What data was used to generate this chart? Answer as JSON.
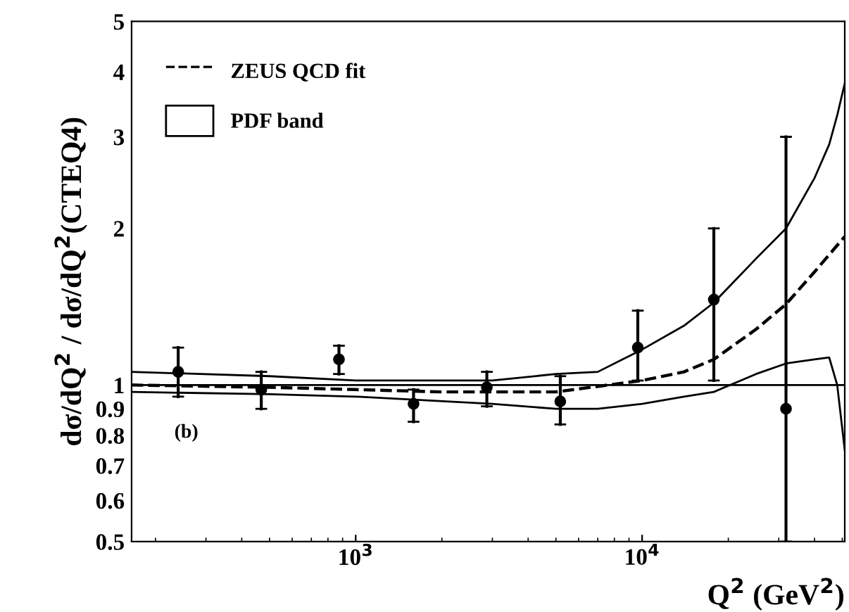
{
  "chart_data": {
    "type": "scatter",
    "xlabel": "Q$^{2}$ (GeV$^{2}$)",
    "ylabel": "dσ/dQ$^{2}$ / dσ/dQ$^{2}$(CTEQ4)",
    "annotations": [
      "(b)"
    ],
    "log": "xy",
    "xlim": [
      165,
      51000
    ],
    "ylim": [
      0.5,
      5
    ],
    "xticks": [
      {
        "value": 1000,
        "label": "10$^{3}$"
      },
      {
        "value": 10000,
        "label": "10$^{4}$"
      }
    ],
    "yticks": [
      0.5,
      0.6,
      0.7,
      0.8,
      0.9,
      1,
      2,
      3,
      4,
      5
    ],
    "grid": false,
    "legend": "top left",
    "ref_lines": [
      {
        "axis": "y",
        "value": 1,
        "color": "#000000",
        "line_style": "solid"
      }
    ],
    "series": [
      {
        "color": "#000000",
        "marker": "circle",
        "x": [
          240,
          468,
          874,
          1592,
          2870,
          5180,
          9660,
          17800,
          31800
        ],
        "values": [
          1.06,
          0.98,
          1.12,
          0.92,
          0.99,
          0.93,
          1.18,
          1.46,
          0.9
        ],
        "errors": [
          [
            0.95,
            1.18
          ],
          [
            0.9,
            1.06
          ],
          [
            1.05,
            1.19
          ],
          [
            0.85,
            0.98
          ],
          [
            0.91,
            1.06
          ],
          [
            0.84,
            1.04
          ],
          [
            1.02,
            1.39
          ],
          [
            1.02,
            2.0
          ],
          [
            0.5,
            3.0
          ]
        ]
      },
      {
        "type": "line",
        "name": "ZEUS QCD fit",
        "color": "#000000",
        "line_style": "dashed",
        "marker": "none",
        "x": [
          165,
          500,
          1000,
          2000,
          5000,
          10000,
          14000,
          17800,
          25000,
          31800,
          40000,
          51000
        ],
        "values": [
          1.0,
          0.99,
          0.98,
          0.97,
          0.97,
          1.02,
          1.06,
          1.12,
          1.28,
          1.43,
          1.65,
          1.93
        ]
      },
      {
        "type": "line",
        "color": "#000000",
        "line_style": "solid",
        "marker": "none",
        "x": [
          165,
          500,
          1000,
          3000,
          5000,
          7000,
          10000,
          14000,
          17800,
          25000,
          31800,
          40000,
          45000,
          48000,
          51000
        ],
        "values": [
          0.97,
          0.96,
          0.95,
          0.92,
          0.9,
          0.9,
          0.92,
          0.95,
          0.97,
          1.05,
          1.1,
          1.12,
          1.13,
          1.0,
          0.75
        ]
      },
      {
        "type": "line",
        "name": "PDF band",
        "color": "#000000",
        "line_style": "solid",
        "marker": "none",
        "x": [
          165,
          500,
          1000,
          3000,
          5000,
          7000,
          10000,
          14000,
          17800,
          25000,
          31800,
          40000,
          45000,
          48000,
          51000
        ],
        "values": [
          1.06,
          1.04,
          1.02,
          1.02,
          1.05,
          1.06,
          1.17,
          1.3,
          1.44,
          1.75,
          2.0,
          2.5,
          2.9,
          3.3,
          3.8
        ]
      }
    ]
  }
}
